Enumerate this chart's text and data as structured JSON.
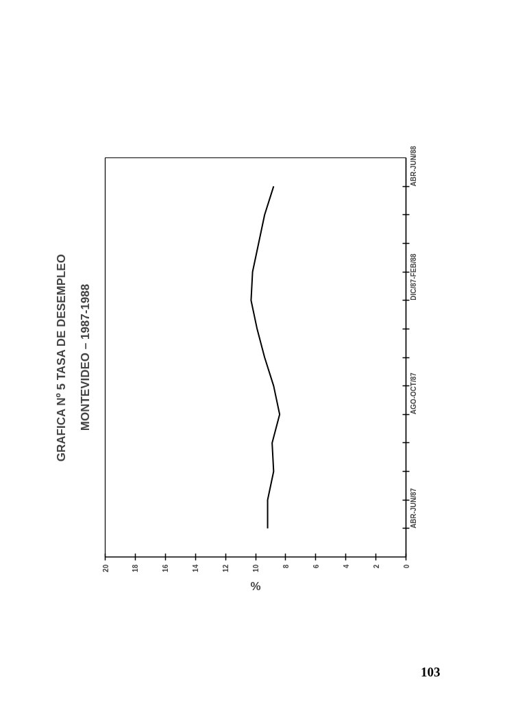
{
  "chart_data": {
    "type": "line",
    "orientation": "horizontal",
    "title": "GRAFICA Nº 5 TASA DE DESEMPLEO",
    "subtitle": "MONTEVIDEO – 1987-1988",
    "xlabel": "%",
    "categories": [
      "ABR-JUN/88",
      null,
      null,
      null,
      "DIC/87-FEB/88",
      null,
      null,
      null,
      "AGO-OCT/87",
      null,
      null,
      null,
      "ABR-JUN/87"
    ],
    "values": [
      8.8,
      9.4,
      9.8,
      10.2,
      10.3,
      9.9,
      9.4,
      8.8,
      8.4,
      8.9,
      8.8,
      9.2,
      9.2
    ],
    "color": "#000000",
    "xlim": [
      20,
      0
    ],
    "xticks": [
      0,
      2,
      4,
      6,
      8,
      10,
      12,
      14,
      16,
      18,
      20
    ],
    "grid": false,
    "annotations": [
      "103"
    ]
  }
}
